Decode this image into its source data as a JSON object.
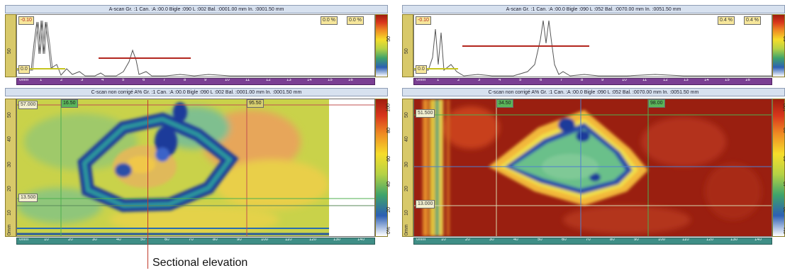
{
  "left": {
    "ascan_title": "A-scan Gr. :1 Can. :A :00.0 Bigle :090 L :002 Bal. :0001.00 mm In. :0001.50 mm",
    "cscan_title": "C-scan non corrigé A% Gr. :1 Can. :A :00.0 Bigle :090 L :002 Bal. :0001.00 mm In. :0001.50 mm",
    "gate_start": "-0.10",
    "gate_low": "0.0",
    "pct_a": "0.0 %",
    "pct_b": "0.0 %",
    "cursor_h1": "16.50",
    "cursor_h2": "95.50",
    "cursor_v1": "57.000",
    "cursor_v2": "13.500",
    "ascan_ruler": [
      "0mm",
      "1",
      "2",
      "3",
      "4",
      "5",
      "6",
      "7",
      "8",
      "9",
      "10",
      "11",
      "12",
      "13",
      "14",
      "15",
      "16"
    ],
    "cscan_ruler": [
      "0mm",
      "10",
      "20",
      "30",
      "40",
      "50",
      "60",
      "70",
      "80",
      "90",
      "100",
      "110",
      "120",
      "130",
      "140"
    ],
    "left_scale": [
      "50",
      "40",
      "30",
      "20",
      "10",
      "0mm"
    ],
    "amp_scale": [
      "100",
      "80",
      "60",
      "40",
      "20",
      "0%"
    ]
  },
  "right": {
    "ascan_title": "A-scan Gr. :1 Can. :A :00.0 Bigle :090 L :052 Bal. :0070.00 mm In. :0051.50 mm",
    "cscan_title": "C-scan non corrigé A% Gr. :1 Can. :A :00.0 Bigle :090 L :052 Bal. :0070.00 mm In. :0051.50 mm",
    "gate_start": "-0.10",
    "gate_low": "0.0",
    "pct_a": "0.4 %",
    "pct_b": "0.4 %",
    "cursor_h1": "34.50",
    "cursor_h2": "98.00",
    "cursor_v1": "51.500",
    "cursor_v2": "13.000",
    "ascan_ruler": [
      "0mm",
      "1",
      "2",
      "3",
      "4",
      "5",
      "6",
      "7",
      "8",
      "9",
      "10",
      "11",
      "12",
      "13",
      "14",
      "15",
      "16"
    ],
    "cscan_ruler": [
      "0mm",
      "10",
      "20",
      "30",
      "40",
      "50",
      "60",
      "70",
      "80",
      "90",
      "100",
      "110",
      "120",
      "130",
      "140"
    ],
    "left_scale": [
      "50",
      "40",
      "30",
      "20",
      "10",
      "0mm"
    ],
    "amp_scale": [
      "100",
      "80",
      "60",
      "40",
      "20",
      "0%"
    ]
  },
  "caption": "Sectional elevation",
  "colors": {
    "accent": "#c0392b",
    "title_bg": "#d7e1ef",
    "ruler": "#7b3f93",
    "ruler_teal": "#3f8e86"
  }
}
